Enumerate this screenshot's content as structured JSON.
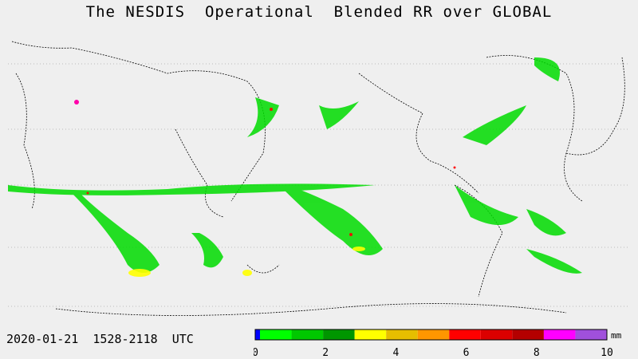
{
  "title": "The NESDIS  Operational  Blended RR over GLOBAL",
  "footer": {
    "date": "2020-01-21",
    "time_range": "1528-2118",
    "zone": "UTC"
  },
  "legend": {
    "unit": "mm",
    "tick_labels": [
      "0",
      "2",
      "4",
      "6",
      "8",
      "10"
    ],
    "colors": [
      "#0000ff",
      "#00ff00",
      "#00c800",
      "#009600",
      "#ffff00",
      "#e6be00",
      "#ff9600",
      "#ff0000",
      "#dc0000",
      "#b40000",
      "#ff00ff",
      "#a050dc"
    ]
  },
  "map": {
    "precip_colors": {
      "light": "#00dc00",
      "moderate": "#ffff00",
      "heavy": "#ff0000",
      "extreme": "#ff00aa"
    }
  }
}
